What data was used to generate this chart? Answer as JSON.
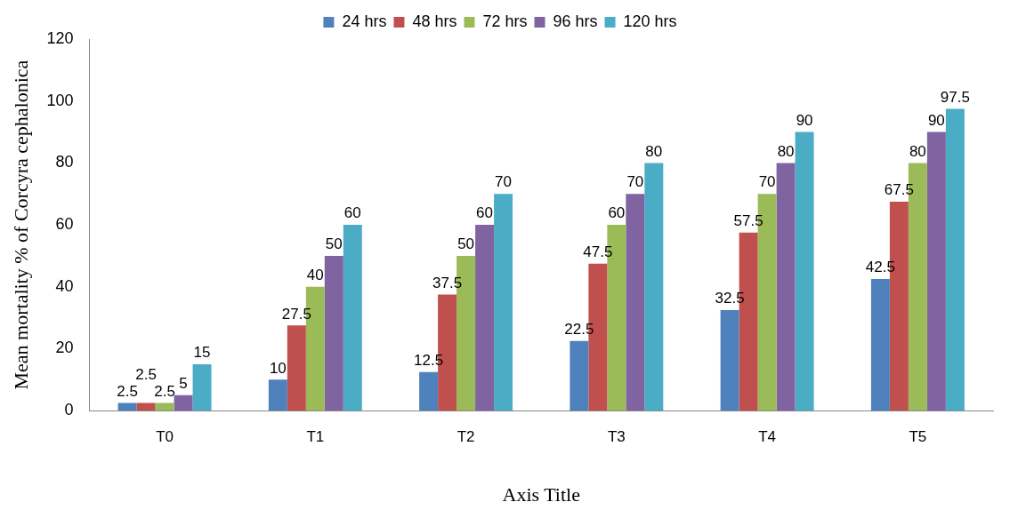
{
  "chart_data": {
    "type": "bar",
    "categories": [
      "T0",
      "T1",
      "T2",
      "T3",
      "T4",
      "T5"
    ],
    "series": [
      {
        "name": "24 hrs",
        "color": "#4f81bd",
        "values": [
          2.5,
          10,
          12.5,
          22.5,
          32.5,
          42.5
        ]
      },
      {
        "name": "48 hrs",
        "color": "#c0504d",
        "values": [
          2.5,
          27.5,
          37.5,
          47.5,
          57.5,
          67.5
        ]
      },
      {
        "name": "72 hrs",
        "color": "#9bbb59",
        "values": [
          2.5,
          40,
          50,
          60,
          70,
          80
        ]
      },
      {
        "name": "96 hrs",
        "color": "#8064a2",
        "values": [
          5,
          50,
          60,
          70,
          80,
          90
        ]
      },
      {
        "name": "120 hrs",
        "color": "#4bacc6",
        "values": [
          15,
          60,
          70,
          80,
          90,
          97.5
        ]
      }
    ],
    "xlabel": "Axis Title",
    "ylabel": "Mean mortality % of Corcyra cephalonica",
    "ylim": [
      0,
      120
    ],
    "yticks": [
      0,
      20,
      40,
      60,
      80,
      100,
      120
    ],
    "grid": false,
    "legend": "top",
    "data_labels": true
  }
}
